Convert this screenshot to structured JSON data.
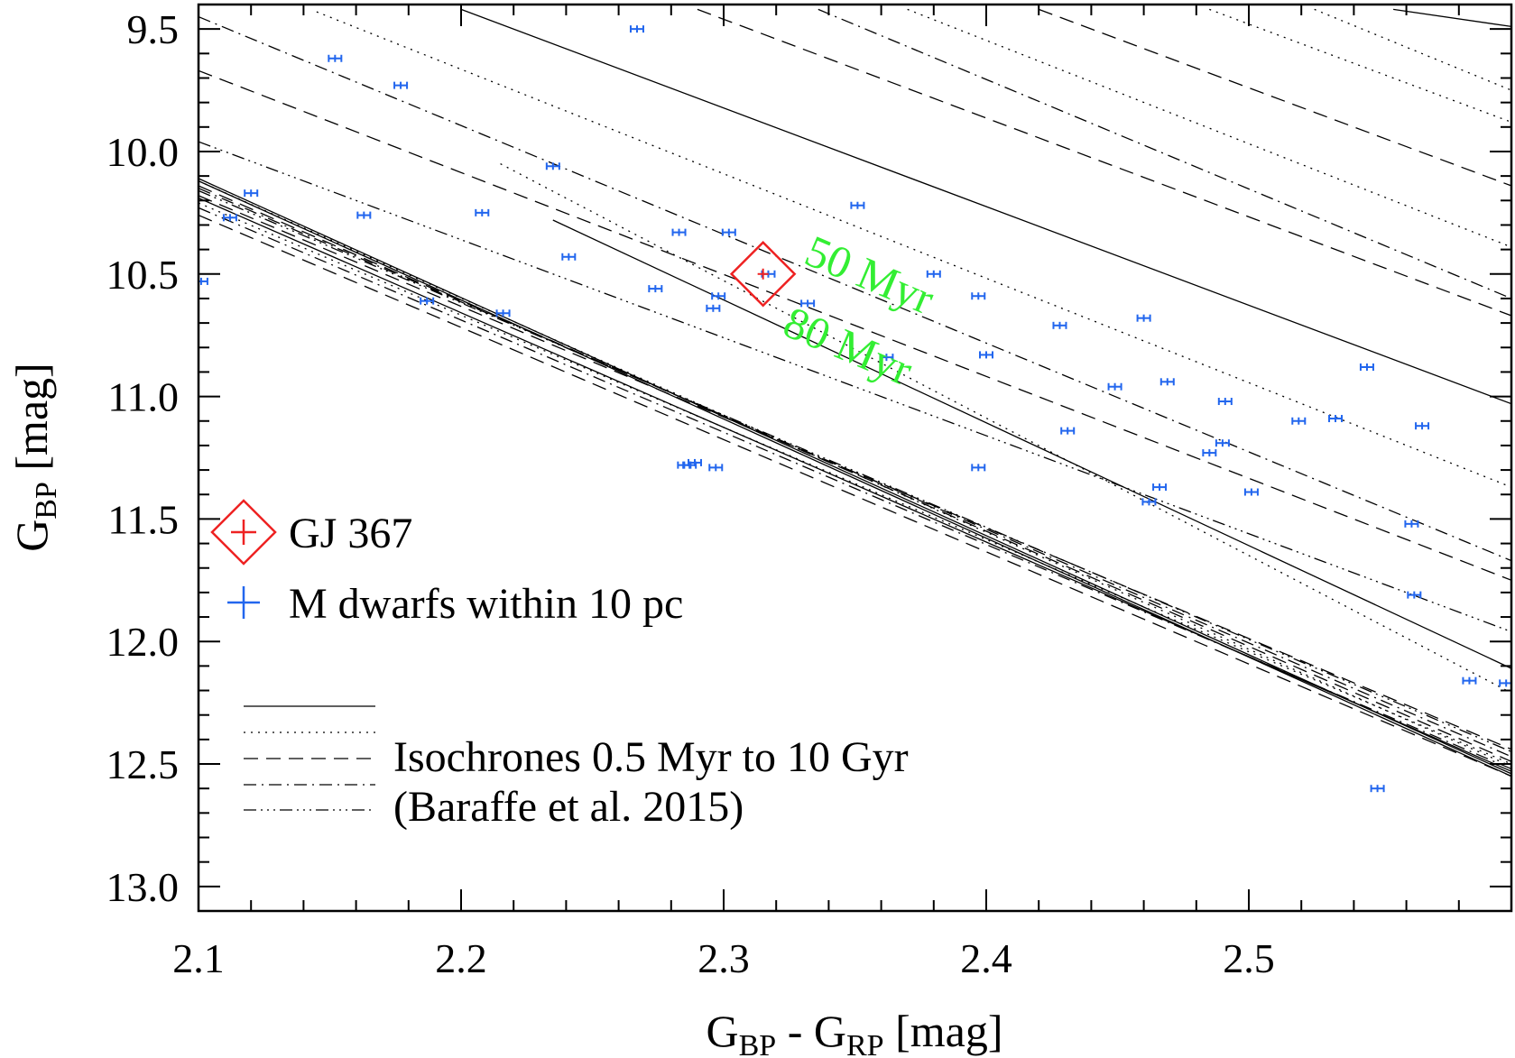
{
  "chart_data": {
    "type": "scatter",
    "xlabel": {
      "main": "G",
      "sub1": "BP",
      "mid": " - G",
      "sub2": "RP",
      "unit": " [mag]"
    },
    "ylabel": {
      "main": "G",
      "sub": "BP",
      "unit": " [mag]"
    },
    "xlim": [
      2.1,
      2.6
    ],
    "ylim": [
      13.1,
      9.4
    ],
    "x_ticks": [
      2.1,
      2.2,
      2.3,
      2.4,
      2.5
    ],
    "x_tick_labels": [
      "2.1",
      "2.2",
      "2.3",
      "2.4",
      "2.5"
    ],
    "y_ticks": [
      9.5,
      10.0,
      10.5,
      11.0,
      11.5,
      12.0,
      12.5,
      13.0
    ],
    "y_tick_labels": [
      "9.5",
      "10.0",
      "10.5",
      "11.0",
      "11.5",
      "12.0",
      "12.5",
      "13.0"
    ],
    "grid": false,
    "legend_placement": "left",
    "legend": [
      {
        "label": "GJ 367",
        "color": "#ee2222",
        "marker": "diamond-plus"
      },
      {
        "label": "M dwarfs within 10 pc",
        "color": "#2266ee",
        "marker": "plus"
      }
    ],
    "isochrone_legend": {
      "line1": "Isochrones 0.5 Myr to 10 Gyr",
      "line2": "(Baraffe et al. 2015)"
    },
    "annotations": [
      {
        "text": "50 Myr",
        "color": "#33ee33"
      },
      {
        "text": "80 Myr",
        "color": "#33ee33"
      }
    ],
    "highlight_star": {
      "name": "GJ 367",
      "x": 2.315,
      "y": 10.5,
      "color": "#ee2222"
    },
    "series": [
      {
        "color": "#2266ee",
        "points": [
          [
            2.101,
            10.53
          ],
          [
            2.112,
            10.27
          ],
          [
            2.12,
            10.17
          ],
          [
            2.152,
            9.62
          ],
          [
            2.163,
            10.26
          ],
          [
            2.177,
            9.73
          ],
          [
            2.187,
            10.61
          ],
          [
            2.208,
            10.25
          ],
          [
            2.216,
            10.66
          ],
          [
            2.235,
            10.06
          ],
          [
            2.241,
            10.43
          ],
          [
            2.267,
            9.5
          ],
          [
            2.274,
            10.56
          ],
          [
            2.283,
            10.33
          ],
          [
            2.285,
            11.28
          ],
          [
            2.287,
            11.28
          ],
          [
            2.289,
            11.27
          ],
          [
            2.296,
            10.64
          ],
          [
            2.297,
            11.29
          ],
          [
            2.298,
            10.59
          ],
          [
            2.302,
            10.33
          ],
          [
            2.317,
            10.5
          ],
          [
            2.332,
            10.62
          ],
          [
            2.351,
            10.22
          ],
          [
            2.362,
            10.84
          ],
          [
            2.38,
            10.5
          ],
          [
            2.397,
            10.59
          ],
          [
            2.397,
            11.29
          ],
          [
            2.4,
            10.83
          ],
          [
            2.428,
            10.71
          ],
          [
            2.431,
            11.14
          ],
          [
            2.449,
            10.96
          ],
          [
            2.46,
            10.68
          ],
          [
            2.462,
            11.43
          ],
          [
            2.466,
            11.37
          ],
          [
            2.469,
            10.94
          ],
          [
            2.485,
            11.23
          ],
          [
            2.49,
            11.19
          ],
          [
            2.491,
            11.02
          ],
          [
            2.501,
            11.39
          ],
          [
            2.519,
            11.1
          ],
          [
            2.533,
            11.09
          ],
          [
            2.545,
            10.88
          ],
          [
            2.549,
            12.6
          ],
          [
            2.562,
            11.52
          ],
          [
            2.563,
            11.81
          ],
          [
            2.566,
            11.12
          ],
          [
            2.584,
            12.16
          ],
          [
            2.598,
            12.17
          ]
        ]
      }
    ],
    "isochrones": [
      {
        "dash": "solid",
        "x": [
          2.1,
          2.6
        ],
        "y": [
          10.11,
          12.54
        ]
      },
      {
        "dash": "dotted",
        "x": [
          2.1,
          2.6
        ],
        "y": [
          10.12,
          12.51
        ]
      },
      {
        "dash": "dashed",
        "x": [
          2.1,
          2.6
        ],
        "y": [
          10.14,
          12.49
        ]
      },
      {
        "dash": "dashdot",
        "x": [
          2.1,
          2.6
        ],
        "y": [
          10.15,
          12.47
        ]
      },
      {
        "dash": "dash3dot",
        "x": [
          2.1,
          2.6
        ],
        "y": [
          10.16,
          12.45
        ]
      },
      {
        "dash": "dashed",
        "x": [
          2.1,
          2.6
        ],
        "y": [
          10.18,
          12.44
        ]
      },
      {
        "dash": "solid",
        "x": [
          2.1,
          2.6
        ],
        "y": [
          10.19,
          12.53
        ]
      },
      {
        "dash": "dotted",
        "x": [
          2.1,
          2.6
        ],
        "y": [
          10.21,
          12.5
        ]
      },
      {
        "dash": "dashdot",
        "x": [
          2.1,
          2.6
        ],
        "y": [
          10.23,
          12.52
        ]
      },
      {
        "dash": "dashed",
        "x": [
          2.1,
          2.6
        ],
        "y": [
          10.26,
          12.55
        ]
      },
      {
        "dash": "solid",
        "x": [
          2.1,
          2.6
        ],
        "y": [
          10.12,
          12.55
        ]
      },
      {
        "dash": "solid",
        "x": [
          2.235,
          2.6
        ],
        "y": [
          10.28,
          12.11
        ]
      },
      {
        "dash": "dotted",
        "x": [
          2.215,
          2.6
        ],
        "y": [
          10.05,
          12.21
        ]
      },
      {
        "dash": "dash3dot",
        "x": [
          2.1,
          2.6
        ],
        "y": [
          9.96,
          11.96
        ]
      },
      {
        "dash": "dashed",
        "x": [
          2.1,
          2.6
        ],
        "y": [
          9.67,
          11.75
        ]
      },
      {
        "dash": "dashdot",
        "x": [
          2.1,
          2.6
        ],
        "y": [
          9.45,
          11.67
        ]
      },
      {
        "dash": "dotted",
        "x": [
          2.145,
          2.6
        ],
        "y": [
          9.43,
          11.37
        ]
      },
      {
        "dash": "solid",
        "x": [
          2.2,
          2.6
        ],
        "y": [
          9.42,
          11.03
        ]
      },
      {
        "dash": "dashed",
        "x": [
          2.29,
          2.6
        ],
        "y": [
          9.42,
          10.67
        ]
      },
      {
        "dash": "dashdot",
        "x": [
          2.336,
          2.6
        ],
        "y": [
          9.42,
          10.6
        ]
      },
      {
        "dash": "dotted",
        "x": [
          2.37,
          2.6
        ],
        "y": [
          9.42,
          10.39
        ]
      },
      {
        "dash": "dashed",
        "x": [
          2.42,
          2.6
        ],
        "y": [
          9.42,
          10.14
        ]
      },
      {
        "dash": "solid",
        "x": [
          2.555,
          2.6
        ],
        "y": [
          9.42,
          9.49
        ]
      },
      {
        "dash": "dotted",
        "x": [
          2.485,
          2.6
        ],
        "y": [
          9.42,
          9.88
        ]
      },
      {
        "dash": "dotted",
        "x": [
          2.525,
          2.6
        ],
        "y": [
          9.42,
          9.75
        ]
      }
    ]
  }
}
